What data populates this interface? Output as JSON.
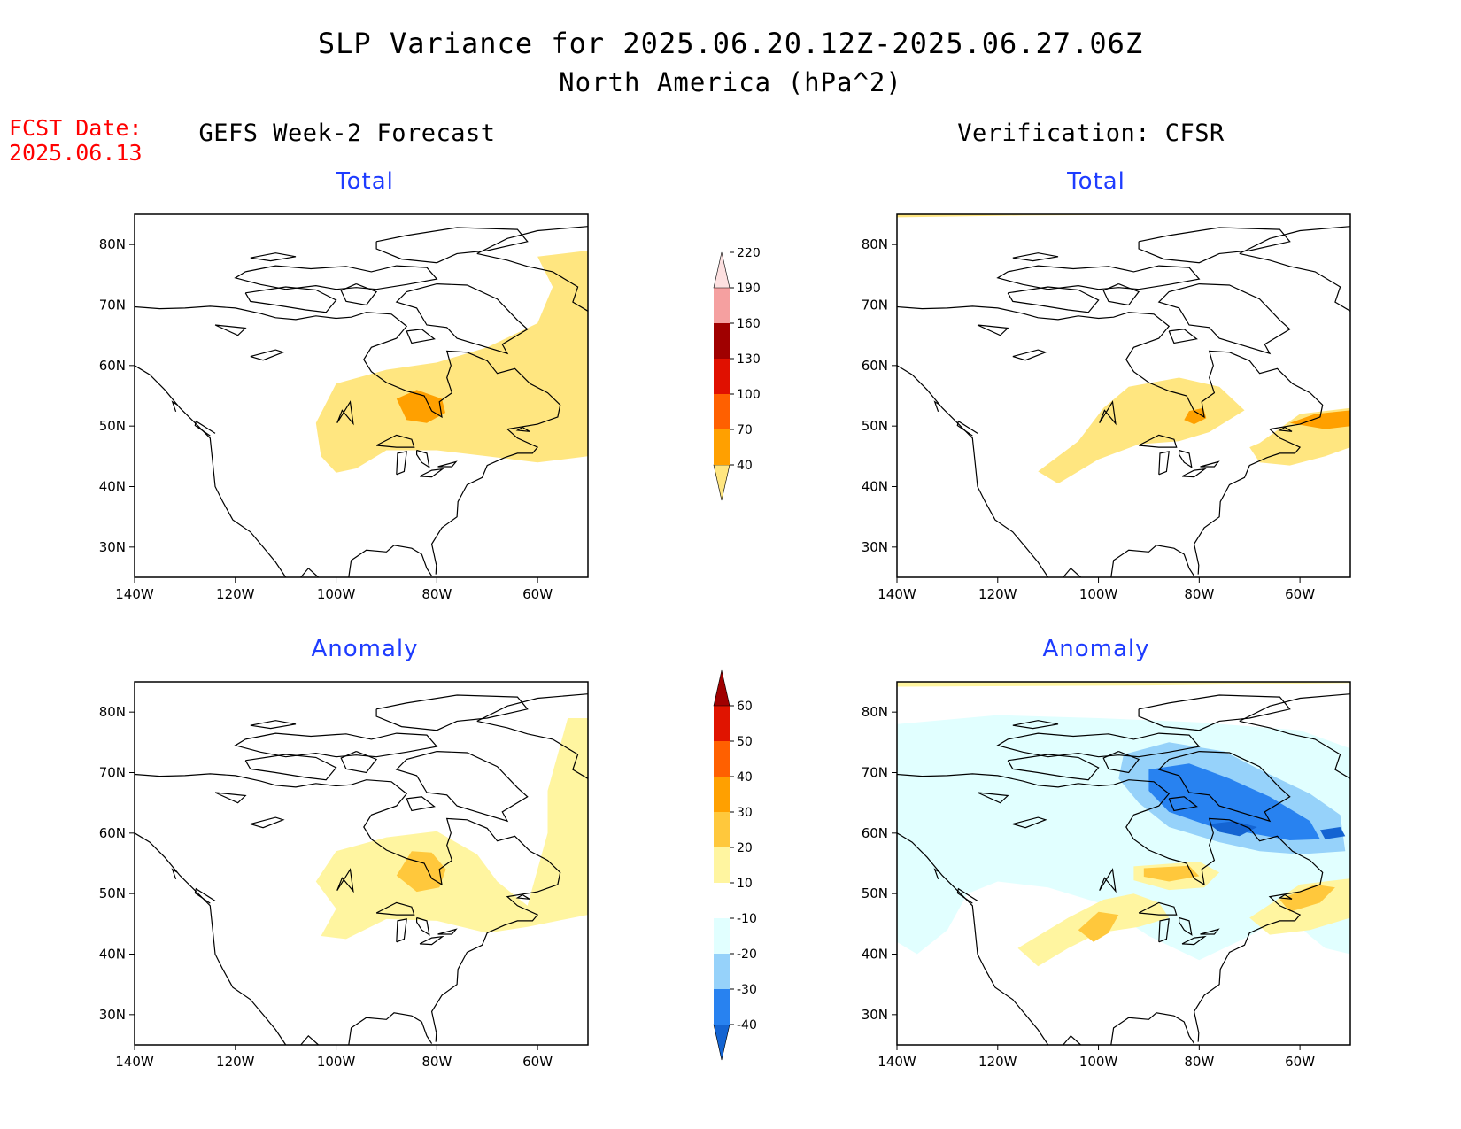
{
  "title": "SLP Variance for 2025.06.20.12Z-2025.06.27.06Z",
  "subtitle": "North America (hPa^2)",
  "fcst_label": "FCST Date:",
  "fcst_date": "2025.06.13",
  "columns": [
    {
      "title": "GEFS Week-2 Forecast"
    },
    {
      "title": "Verification: CFSR"
    }
  ],
  "panel_titles": {
    "total": "Total",
    "anomaly": "Anomaly"
  },
  "axes": {
    "lon_ticks": [
      "140W",
      "120W",
      "100W",
      "80W",
      "60W"
    ],
    "lat_ticks": [
      "80N",
      "70N",
      "60N",
      "50N",
      "40N",
      "30N"
    ],
    "lon_range": [
      -140,
      -50
    ],
    "lat_range": [
      25,
      85
    ]
  },
  "total_colorbar": {
    "levels": [
      "40",
      "70",
      "100",
      "130",
      "160",
      "190",
      "220"
    ],
    "colors": [
      "#ffe680",
      "#ffa000",
      "#ff6000",
      "#e01000",
      "#a00000",
      "#f5a0a0",
      "#fde0e0"
    ]
  },
  "anomaly_colorbar": {
    "levels": [
      "-40",
      "-30",
      "-20",
      "-10",
      "10",
      "20",
      "30",
      "40",
      "50",
      "60"
    ],
    "colors": [
      "#1464d2",
      "#2882f0",
      "#96d2fa",
      "#e1ffff",
      "#ffffff",
      "#fff5a0",
      "#ffc83c",
      "#ffa000",
      "#ff6000",
      "#e01400",
      "#a00000"
    ]
  }
}
